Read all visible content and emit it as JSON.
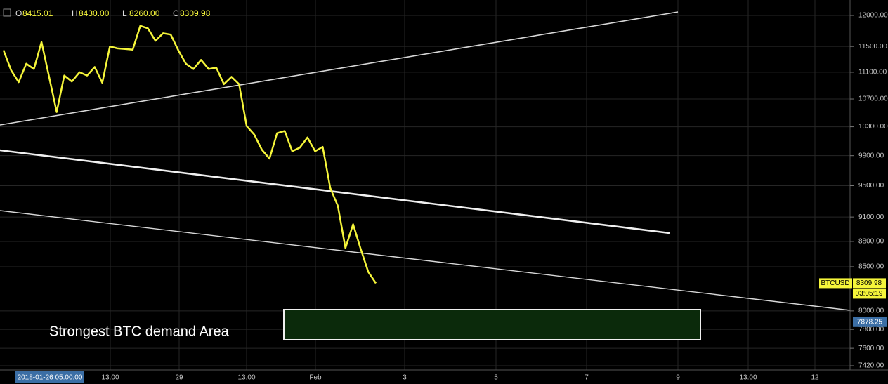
{
  "chart_data": {
    "type": "line",
    "symbol": "BTCUSD",
    "ohlc": [
      {
        "label": "O",
        "value": "8415.01"
      },
      {
        "label": "H",
        "value": "8430.00"
      },
      {
        "label": "L",
        "value": "8260.00"
      },
      {
        "label": "C",
        "value": "8309.98"
      }
    ],
    "annotation": "Strongest BTC demand Area",
    "last_price": 8309.98,
    "countdown": "03:05:19",
    "crosshair_price": 7878.25,
    "crosshair_time": "2018-01-26 05:00:00",
    "x_labels": [
      "13:00",
      "29",
      "13:00",
      "Feb",
      "3",
      "5",
      "7",
      "9",
      "13:00",
      "12"
    ],
    "log_scale": true,
    "grid": true,
    "ylim": [
      7420,
      12000
    ],
    "yticks": [
      {
        "value": 12000,
        "label": "12000.00"
      },
      {
        "value": 11500,
        "label": "11500.00"
      },
      {
        "value": 11100,
        "label": "11100.00"
      },
      {
        "value": 10700,
        "label": "10700.00"
      },
      {
        "value": 10300,
        "label": "10300.00"
      },
      {
        "value": 9900,
        "label": "9900.00"
      },
      {
        "value": 9500,
        "label": "9500.00"
      },
      {
        "value": 9100,
        "label": "9100.00"
      },
      {
        "value": 8800,
        "label": "8800.00"
      },
      {
        "value": 8500,
        "label": "8500.00"
      },
      {
        "value": 8000,
        "label": "8000.00"
      },
      {
        "value": 7800,
        "label": "7800.00"
      },
      {
        "value": 7600,
        "label": "7600.00"
      },
      {
        "value": 7420,
        "label": "7420.00"
      }
    ],
    "series": [
      {
        "color": "#f5f53a",
        "values": [
          11440,
          11130,
          10950,
          11230,
          11150,
          11570,
          11030,
          10510,
          11050,
          10960,
          11100,
          11050,
          11180,
          10940,
          11500,
          11470,
          11460,
          11450,
          11830,
          11790,
          11590,
          11710,
          11690,
          11440,
          11230,
          11150,
          11290,
          11150,
          11170,
          10920,
          11030,
          10920,
          10310,
          10190,
          9980,
          9860,
          10210,
          10240,
          9960,
          10010,
          10150,
          9960,
          10020,
          9470,
          9240,
          8720,
          9010,
          8710,
          8440,
          8310
        ]
      }
    ]
  }
}
